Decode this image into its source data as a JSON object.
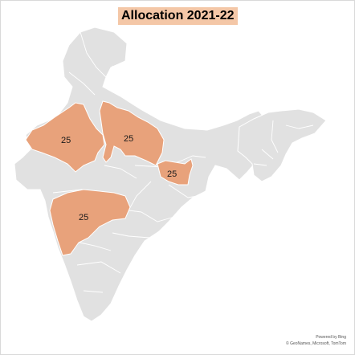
{
  "title": "Allocation 2021-22",
  "colors": {
    "highlight": "#E8A27B",
    "base_land": "#E1E1E1",
    "border": "#FFFFFF",
    "title_bg": "#F4C7A7"
  },
  "regions": [
    {
      "name": "Rajasthan",
      "value": "25",
      "highlighted": true
    },
    {
      "name": "Uttar Pradesh",
      "value": "25",
      "highlighted": true
    },
    {
      "name": "Jharkhand",
      "value": "25",
      "highlighted": true
    },
    {
      "name": "Maharashtra",
      "value": "25",
      "highlighted": true
    }
  ],
  "attribution": {
    "line1": "Powered by Bing",
    "line2": "© GeoNames, Microsoft, TomTom"
  }
}
